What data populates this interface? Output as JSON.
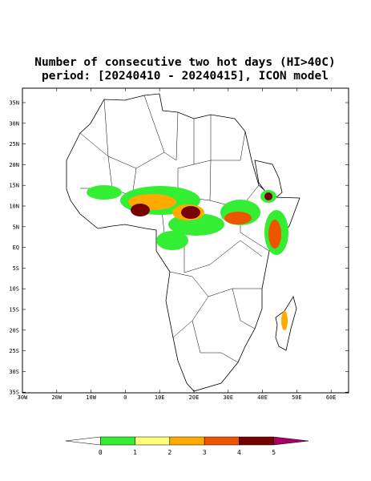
{
  "title": [
    "Number of consecutive two hot days (HI>40C)",
    "period: [20240410 - 20240415], ICON model"
  ],
  "lat_ticks": [
    "35N",
    "30N",
    "25N",
    "20N",
    "15N",
    "10N",
    "5N",
    "EQ",
    "5S",
    "10S",
    "15S",
    "20S",
    "25S",
    "30S",
    "35S"
  ],
  "lon_ticks": [
    "30W",
    "20W",
    "10W",
    "0",
    "10E",
    "20E",
    "30E",
    "40E",
    "50E",
    "60E"
  ],
  "colorbar": {
    "labels": [
      0,
      1,
      2,
      3,
      4,
      5
    ],
    "colors": [
      "#ffffff",
      "#33ee33",
      "#ffff77",
      "#ffaa00",
      "#ee5500",
      "#770000",
      "#aa0066"
    ]
  }
}
